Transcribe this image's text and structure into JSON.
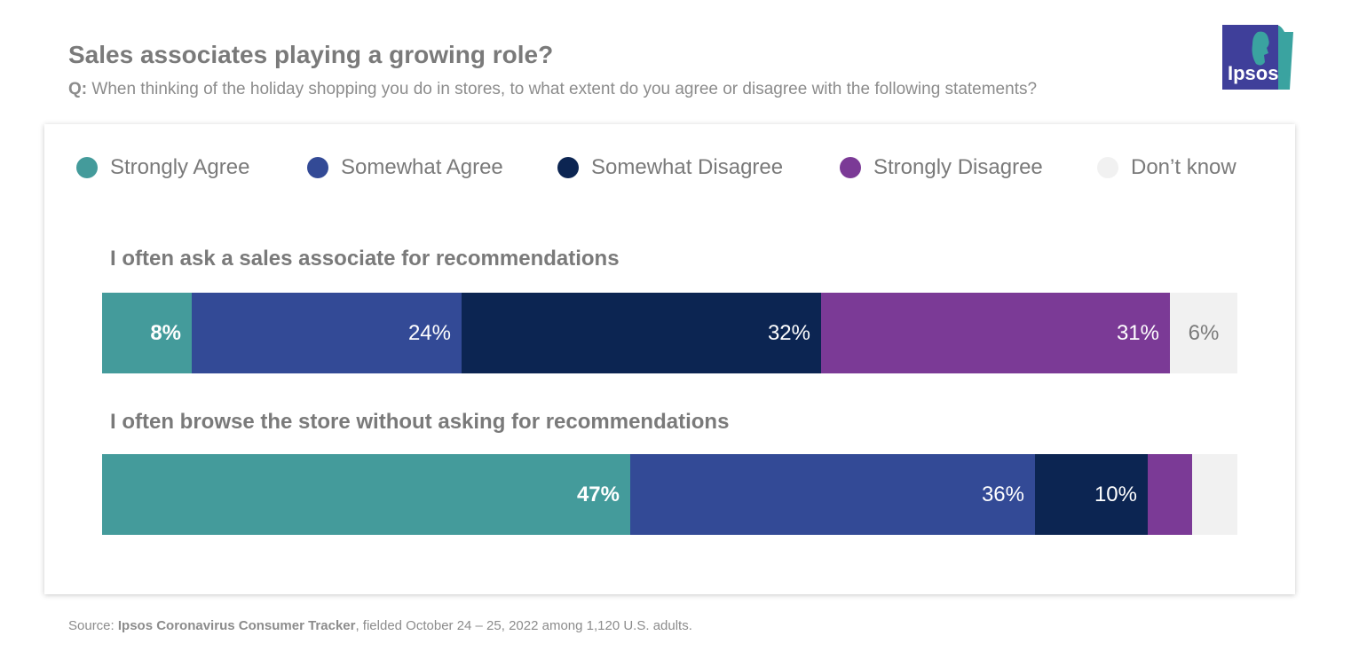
{
  "title": "Sales associates playing a growing role?",
  "subtitle_prefix": "Q:",
  "subtitle_text": "When thinking of the holiday shopping you do in stores, to what extent do you agree or disagree with the following statements?",
  "logo_text": "Ipsos",
  "source_prefix": "Source: ",
  "source_name": "Ipsos Coronavirus Consumer Tracker",
  "source_suffix": ", fielded October 24 – 25, 2022 among 1,120 U.S. adults.",
  "colors": {
    "strongly_agree": "#449b9b",
    "somewhat_agree": "#334a96",
    "somewhat_disagree": "#0c2552",
    "strongly_disagree": "#7b3a96",
    "dont_know": "#f1f1f1",
    "logo_blue": "#3f3f9a",
    "logo_teal": "#3aa3a0"
  },
  "legend": [
    {
      "label": "Strongly Agree",
      "color": "#449b9b"
    },
    {
      "label": "Somewhat Agree",
      "color": "#334a96"
    },
    {
      "label": "Somewhat Disagree",
      "color": "#0c2552"
    },
    {
      "label": "Strongly Disagree",
      "color": "#7b3a96"
    },
    {
      "label": "Don’t know",
      "color": "#f1f1f1"
    }
  ],
  "chart_data": {
    "type": "bar",
    "orientation": "horizontal-stacked-100",
    "categories": [
      "I often ask a sales associate for recommendations",
      "I often browse the store without asking for recommendations"
    ],
    "series": [
      {
        "name": "Strongly Agree",
        "values": [
          8,
          47
        ],
        "labels": [
          "8%",
          "47%"
        ]
      },
      {
        "name": "Somewhat Agree",
        "values": [
          24,
          36
        ],
        "labels": [
          "24%",
          "36%"
        ]
      },
      {
        "name": "Somewhat Disagree",
        "values": [
          32,
          10
        ],
        "labels": [
          "32%",
          "10%"
        ]
      },
      {
        "name": "Strongly Disagree",
        "values": [
          31,
          4
        ],
        "labels": [
          "31%",
          ""
        ]
      },
      {
        "name": "Don’t know",
        "values": [
          6,
          4
        ],
        "labels": [
          "6%",
          ""
        ]
      }
    ],
    "legend_position": "top",
    "grid": false
  }
}
